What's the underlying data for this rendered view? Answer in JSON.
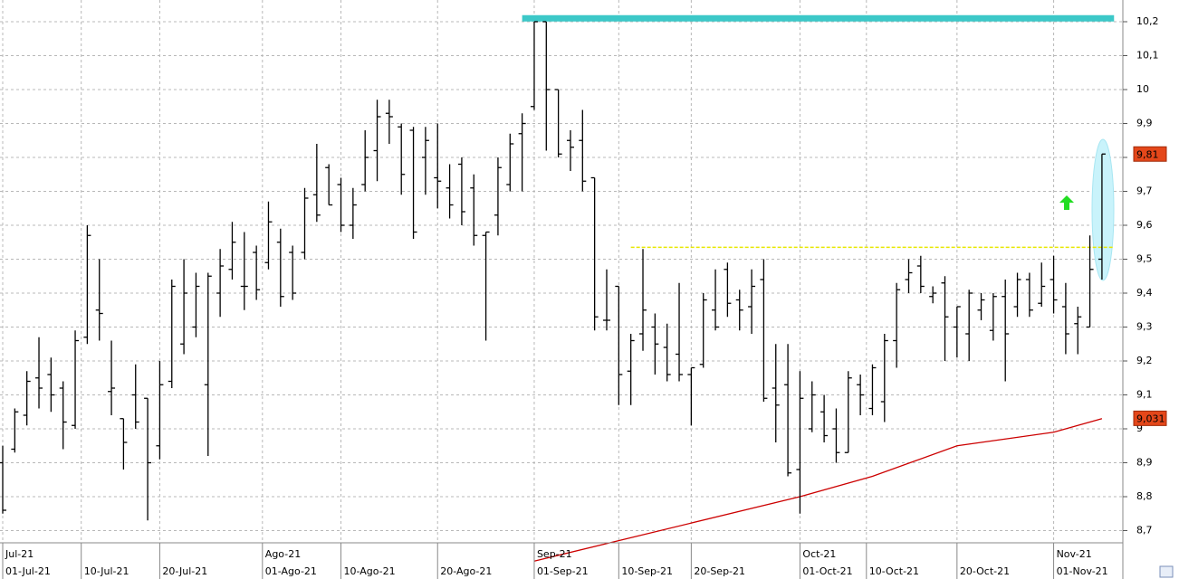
{
  "chart_data": {
    "type": "ohlc",
    "xlim": [
      -0.225,
      92.73
    ],
    "ylim": [
      8.664,
      10.264
    ],
    "grid": true,
    "color": "#000000",
    "yticks": [
      {
        "value": 8.7,
        "label": "8,7"
      },
      {
        "value": 8.8,
        "label": "8,8"
      },
      {
        "value": 8.9,
        "label": "8,9"
      },
      9,
      {
        "value": 9.1,
        "label": "9,1"
      },
      {
        "value": 9.2,
        "label": "9,2"
      },
      {
        "value": 9.3,
        "label": "9,3"
      },
      {
        "value": 9.4,
        "label": "9,4"
      },
      {
        "value": 9.5,
        "label": "9,5"
      },
      {
        "value": 9.6,
        "label": "9,6"
      },
      {
        "value": 9.7,
        "label": "9,7"
      },
      {
        "value": 9.8,
        "label": "9,8"
      },
      {
        "value": 9.9,
        "label": "9,9"
      },
      10,
      {
        "value": 10.1,
        "label": "10,1"
      },
      {
        "value": 10.2,
        "label": "10,2"
      }
    ],
    "xticks": [
      {
        "value": 0,
        "label": "01-Jul-21"
      },
      {
        "value": 6.5,
        "label": "10-Jul-21"
      },
      {
        "value": 13,
        "label": "20-Jul-21"
      },
      {
        "value": 21.5,
        "label": "01-Ago-21"
      },
      {
        "value": 28,
        "label": "10-Ago-21"
      },
      {
        "value": 36,
        "label": "20-Ago-21"
      },
      {
        "value": 44,
        "label": "01-Sep-21"
      },
      {
        "value": 51,
        "label": "10-Sep-21"
      },
      {
        "value": 57,
        "label": "20-Sep-21"
      },
      {
        "value": 66,
        "label": "01-Oct-21"
      },
      {
        "value": 71.5,
        "label": "10-Oct-21"
      },
      {
        "value": 79,
        "label": "20-Oct-21"
      },
      {
        "value": 87,
        "label": "01-Nov-21"
      }
    ],
    "month_labels": [
      {
        "value": 0,
        "label": "Jul-21"
      },
      {
        "value": 21.5,
        "label": "Ago-21"
      },
      {
        "value": 44,
        "label": "Sep-21"
      },
      {
        "value": 66,
        "label": "Oct-21"
      },
      {
        "value": 87,
        "label": "Nov-21"
      }
    ],
    "open": [
      8.9,
      8.94,
      9.04,
      9.15,
      9.16,
      9.12,
      9.01,
      9.27,
      9.35,
      9.11,
      9.03,
      9.1,
      9.09,
      8.95,
      9.14,
      9.25,
      9.3,
      9.13,
      9.4,
      9.47,
      9.42,
      9.52,
      9.49,
      9.55,
      9.52,
      9.52,
      9.69,
      9.77,
      9.72,
      9.6,
      9.72,
      9.82,
      9.93,
      9.89,
      9.88,
      9.8,
      9.74,
      9.71,
      9.78,
      9.71,
      9.57,
      9.63,
      9.72,
      9.87,
      9.95,
      10.2,
      10.0,
      9.85,
      9.85,
      9.74,
      9.32,
      9.42,
      9.17,
      9.28,
      9.3,
      9.24,
      9.22,
      9.16,
      9.19,
      9.35,
      9.47,
      9.38,
      9.36,
      9.44,
      9.12,
      9.13,
      8.88,
      9.0,
      9.05,
      9.0,
      8.93,
      9.13,
      9.06,
      9.08,
      9.26,
      9.44,
      9.48,
      9.39,
      9.43,
      9.3,
      9.28,
      9.35,
      9.29,
      9.39,
      9.36,
      9.44,
      9.37,
      9.44,
      9.36,
      9.31,
      9.3,
      9.5
    ],
    "high": [
      8.95,
      9.06,
      9.17,
      9.27,
      9.21,
      9.14,
      9.29,
      9.6,
      9.5,
      9.26,
      9.03,
      9.19,
      9.09,
      9.2,
      9.44,
      9.5,
      9.46,
      9.46,
      9.53,
      9.61,
      9.58,
      9.54,
      9.67,
      9.59,
      9.54,
      9.71,
      9.84,
      9.78,
      9.74,
      9.71,
      9.88,
      9.97,
      9.97,
      9.9,
      9.89,
      9.89,
      9.9,
      9.78,
      9.8,
      9.75,
      9.58,
      9.8,
      9.87,
      9.93,
      10.2,
      10.2,
      10.0,
      9.88,
      9.94,
      9.74,
      9.47,
      9.42,
      9.28,
      9.53,
      9.34,
      9.31,
      9.43,
      9.18,
      9.4,
      9.47,
      9.49,
      9.41,
      9.47,
      9.5,
      9.25,
      9.25,
      9.17,
      9.14,
      9.1,
      9.06,
      9.17,
      9.16,
      9.19,
      9.28,
      9.43,
      9.5,
      9.51,
      9.42,
      9.45,
      9.36,
      9.41,
      9.4,
      9.4,
      9.44,
      9.46,
      9.46,
      9.49,
      9.51,
      9.43,
      9.36,
      9.57,
      9.81
    ],
    "low": [
      8.75,
      8.93,
      9.01,
      9.06,
      9.05,
      8.94,
      9.0,
      9.25,
      9.26,
      9.04,
      8.88,
      9.0,
      8.73,
      8.91,
      9.12,
      9.22,
      9.27,
      8.92,
      9.33,
      9.44,
      9.35,
      9.38,
      9.47,
      9.36,
      9.38,
      9.5,
      9.61,
      9.66,
      9.58,
      9.56,
      9.7,
      9.73,
      9.84,
      9.69,
      9.56,
      9.69,
      9.65,
      9.62,
      9.6,
      9.54,
      9.26,
      9.57,
      9.7,
      9.7,
      9.94,
      9.82,
      9.8,
      9.76,
      9.7,
      9.29,
      9.29,
      9.07,
      9.07,
      9.23,
      9.16,
      9.14,
      9.14,
      9.01,
      9.18,
      9.29,
      9.33,
      9.29,
      9.28,
      9.08,
      8.96,
      8.86,
      8.75,
      8.99,
      8.96,
      8.9,
      8.93,
      9.04,
      9.04,
      9.02,
      9.18,
      9.4,
      9.4,
      9.37,
      9.2,
      9.21,
      9.2,
      9.32,
      9.26,
      9.14,
      9.33,
      9.33,
      9.36,
      9.34,
      9.22,
      9.22,
      9.3,
      9.44
    ],
    "close": [
      8.76,
      9.05,
      9.14,
      9.12,
      9.1,
      9.02,
      9.26,
      9.57,
      9.34,
      9.12,
      8.96,
      9.02,
      8.9,
      9.13,
      9.42,
      9.4,
      9.42,
      9.45,
      9.48,
      9.55,
      9.42,
      9.41,
      9.61,
      9.39,
      9.4,
      9.68,
      9.63,
      9.66,
      9.6,
      9.66,
      9.8,
      9.92,
      9.92,
      9.75,
      9.58,
      9.85,
      9.73,
      9.66,
      9.64,
      9.57,
      9.58,
      9.77,
      9.84,
      9.9,
      10.2,
      10.0,
      9.81,
      9.83,
      9.73,
      9.33,
      9.32,
      9.16,
      9.26,
      9.35,
      9.25,
      9.16,
      9.16,
      9.18,
      9.38,
      9.3,
      9.37,
      9.35,
      9.42,
      9.09,
      9.07,
      8.87,
      9.09,
      9.1,
      8.98,
      8.93,
      9.15,
      9.1,
      9.18,
      9.26,
      9.41,
      9.46,
      9.42,
      9.4,
      9.33,
      9.36,
      9.4,
      9.38,
      9.39,
      9.28,
      9.44,
      9.35,
      9.42,
      9.38,
      9.28,
      9.33,
      9.47,
      9.81
    ],
    "overlays": [
      {
        "color": "#cc0000",
        "x": [
          44,
          66,
          72,
          79,
          87,
          91
        ],
        "values": [
          8.61,
          8.8,
          8.86,
          8.95,
          8.99,
          9.03
        ]
      },
      {
        "color": "#3cc8c8",
        "x": [
          43,
          92
        ],
        "values": [
          10.21,
          10.21
        ]
      },
      {
        "color": "#e8e800",
        "x": [
          52,
          92
        ],
        "values": [
          9.535,
          9.535
        ]
      }
    ],
    "price_tags": [
      {
        "value": 9.81,
        "label": "9,81"
      },
      {
        "value": 9.031,
        "label": "9,031"
      }
    ]
  }
}
